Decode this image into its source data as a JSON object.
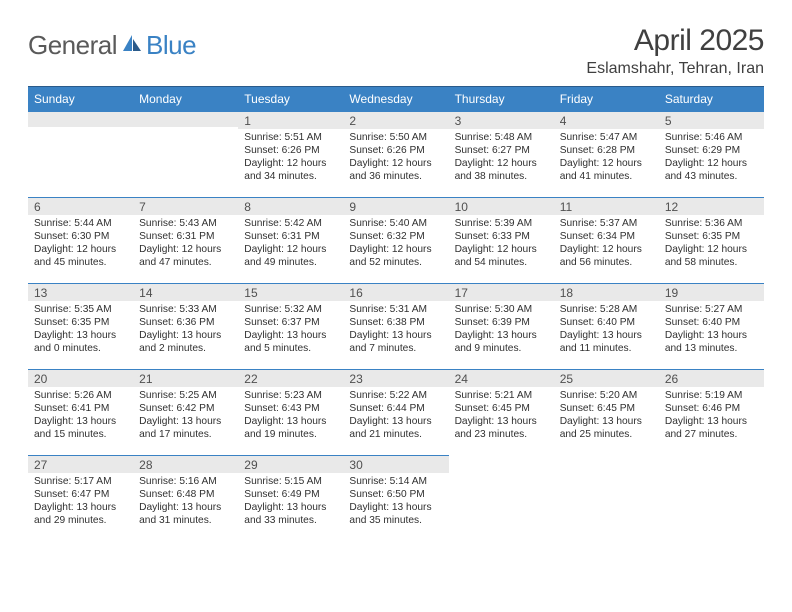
{
  "logo": {
    "general": "General",
    "blue": "Blue"
  },
  "title": "April 2025",
  "location": "Eslamshahr, Tehran, Iran",
  "header_bg": "#3a82c4",
  "header_border": "#2a5a8a",
  "daynum_bg": "#e9e9e9",
  "text_color": "#303030",
  "columns": [
    "Sunday",
    "Monday",
    "Tuesday",
    "Wednesday",
    "Thursday",
    "Friday",
    "Saturday"
  ],
  "weeks": [
    [
      null,
      null,
      {
        "n": "1",
        "sr": "5:51 AM",
        "ss": "6:26 PM",
        "dl": "12 hours and 34 minutes."
      },
      {
        "n": "2",
        "sr": "5:50 AM",
        "ss": "6:26 PM",
        "dl": "12 hours and 36 minutes."
      },
      {
        "n": "3",
        "sr": "5:48 AM",
        "ss": "6:27 PM",
        "dl": "12 hours and 38 minutes."
      },
      {
        "n": "4",
        "sr": "5:47 AM",
        "ss": "6:28 PM",
        "dl": "12 hours and 41 minutes."
      },
      {
        "n": "5",
        "sr": "5:46 AM",
        "ss": "6:29 PM",
        "dl": "12 hours and 43 minutes."
      }
    ],
    [
      {
        "n": "6",
        "sr": "5:44 AM",
        "ss": "6:30 PM",
        "dl": "12 hours and 45 minutes."
      },
      {
        "n": "7",
        "sr": "5:43 AM",
        "ss": "6:31 PM",
        "dl": "12 hours and 47 minutes."
      },
      {
        "n": "8",
        "sr": "5:42 AM",
        "ss": "6:31 PM",
        "dl": "12 hours and 49 minutes."
      },
      {
        "n": "9",
        "sr": "5:40 AM",
        "ss": "6:32 PM",
        "dl": "12 hours and 52 minutes."
      },
      {
        "n": "10",
        "sr": "5:39 AM",
        "ss": "6:33 PM",
        "dl": "12 hours and 54 minutes."
      },
      {
        "n": "11",
        "sr": "5:37 AM",
        "ss": "6:34 PM",
        "dl": "12 hours and 56 minutes."
      },
      {
        "n": "12",
        "sr": "5:36 AM",
        "ss": "6:35 PM",
        "dl": "12 hours and 58 minutes."
      }
    ],
    [
      {
        "n": "13",
        "sr": "5:35 AM",
        "ss": "6:35 PM",
        "dl": "13 hours and 0 minutes."
      },
      {
        "n": "14",
        "sr": "5:33 AM",
        "ss": "6:36 PM",
        "dl": "13 hours and 2 minutes."
      },
      {
        "n": "15",
        "sr": "5:32 AM",
        "ss": "6:37 PM",
        "dl": "13 hours and 5 minutes."
      },
      {
        "n": "16",
        "sr": "5:31 AM",
        "ss": "6:38 PM",
        "dl": "13 hours and 7 minutes."
      },
      {
        "n": "17",
        "sr": "5:30 AM",
        "ss": "6:39 PM",
        "dl": "13 hours and 9 minutes."
      },
      {
        "n": "18",
        "sr": "5:28 AM",
        "ss": "6:40 PM",
        "dl": "13 hours and 11 minutes."
      },
      {
        "n": "19",
        "sr": "5:27 AM",
        "ss": "6:40 PM",
        "dl": "13 hours and 13 minutes."
      }
    ],
    [
      {
        "n": "20",
        "sr": "5:26 AM",
        "ss": "6:41 PM",
        "dl": "13 hours and 15 minutes."
      },
      {
        "n": "21",
        "sr": "5:25 AM",
        "ss": "6:42 PM",
        "dl": "13 hours and 17 minutes."
      },
      {
        "n": "22",
        "sr": "5:23 AM",
        "ss": "6:43 PM",
        "dl": "13 hours and 19 minutes."
      },
      {
        "n": "23",
        "sr": "5:22 AM",
        "ss": "6:44 PM",
        "dl": "13 hours and 21 minutes."
      },
      {
        "n": "24",
        "sr": "5:21 AM",
        "ss": "6:45 PM",
        "dl": "13 hours and 23 minutes."
      },
      {
        "n": "25",
        "sr": "5:20 AM",
        "ss": "6:45 PM",
        "dl": "13 hours and 25 minutes."
      },
      {
        "n": "26",
        "sr": "5:19 AM",
        "ss": "6:46 PM",
        "dl": "13 hours and 27 minutes."
      }
    ],
    [
      {
        "n": "27",
        "sr": "5:17 AM",
        "ss": "6:47 PM",
        "dl": "13 hours and 29 minutes."
      },
      {
        "n": "28",
        "sr": "5:16 AM",
        "ss": "6:48 PM",
        "dl": "13 hours and 31 minutes."
      },
      {
        "n": "29",
        "sr": "5:15 AM",
        "ss": "6:49 PM",
        "dl": "13 hours and 33 minutes."
      },
      {
        "n": "30",
        "sr": "5:14 AM",
        "ss": "6:50 PM",
        "dl": "13 hours and 35 minutes."
      },
      null,
      null,
      null
    ]
  ]
}
